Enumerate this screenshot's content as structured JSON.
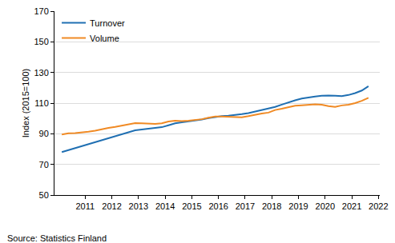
{
  "chart_data": {
    "type": "line",
    "y_label": "Index (2015=100)",
    "source": "Source: Statistics Finland",
    "x": [
      2010.125,
      2010.375,
      2010.625,
      2010.875,
      2011.125,
      2011.375,
      2011.625,
      2011.875,
      2012.125,
      2012.375,
      2012.625,
      2012.875,
      2013.125,
      2013.375,
      2013.625,
      2013.875,
      2014.125,
      2014.375,
      2014.625,
      2014.875,
      2015.125,
      2015.375,
      2015.625,
      2015.875,
      2016.125,
      2016.375,
      2016.625,
      2016.875,
      2017.125,
      2017.375,
      2017.625,
      2017.875,
      2018.125,
      2018.375,
      2018.625,
      2018.875,
      2019.125,
      2019.375,
      2019.625,
      2019.875,
      2020.125,
      2020.375,
      2020.625,
      2020.875,
      2021.125,
      2021.375,
      2021.625
    ],
    "series": [
      {
        "name": "Turnover",
        "color": "#1f6fb2",
        "values": [
          78,
          79.3,
          80.5,
          81.8,
          83,
          84.3,
          85.8,
          87.2,
          88.5,
          89.8,
          91,
          92.3,
          92.8,
          93.3,
          93.8,
          94.3,
          95.5,
          96.8,
          97.5,
          98,
          98.5,
          99.3,
          100.2,
          101,
          101.5,
          101.8,
          102.2,
          102.8,
          103.5,
          104.5,
          105.5,
          106.5,
          107.5,
          109,
          110.5,
          111.8,
          113,
          113.8,
          114.3,
          114.8,
          115,
          114.8,
          114.6,
          115.3,
          116.5,
          118.2,
          121
        ]
      },
      {
        "name": "Volume",
        "color": "#f08a24",
        "values": [
          89.5,
          90.3,
          90.5,
          90.8,
          91.3,
          92,
          93,
          93.8,
          94.5,
          95.3,
          96,
          97,
          96.8,
          96.7,
          96.5,
          96.8,
          98,
          98.5,
          98.3,
          98.5,
          99,
          99.5,
          100.5,
          101.2,
          101.3,
          101.2,
          101,
          100.8,
          101.5,
          102.5,
          103.2,
          103.8,
          105.5,
          106.3,
          107.5,
          108.3,
          108.6,
          108.8,
          109.2,
          109,
          108,
          107.5,
          108.5,
          109,
          110,
          111.5,
          113.5
        ]
      }
    ],
    "xlim": [
      2009.85,
      2022.05
    ],
    "xticks": [
      2011,
      2012,
      2013,
      2014,
      2015,
      2016,
      2017,
      2018,
      2019,
      2020,
      2021,
      2022
    ],
    "ylim": [
      50,
      170
    ],
    "yticks": [
      50,
      70,
      90,
      110,
      130,
      150,
      170
    ],
    "grid": true,
    "legend": "top-left"
  }
}
